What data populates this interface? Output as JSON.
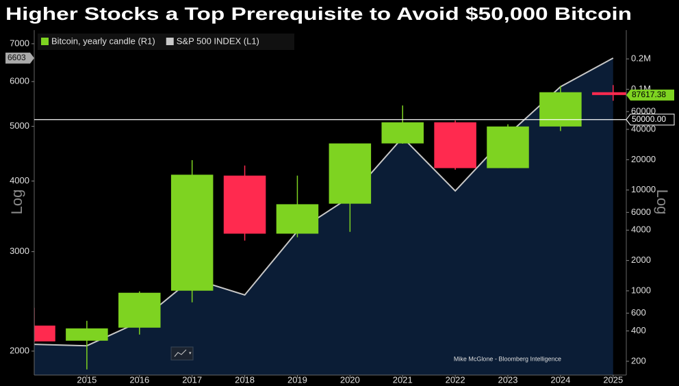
{
  "chart_data": {
    "type": "candlestick",
    "title": "Higher Stocks a Top Prerequisite to Avoid $50,000 Bitcoin",
    "source": "Mike McGlone - Bloomberg Intelligence",
    "ylabel": "Log",
    "y2label": "Log",
    "x": [
      2014,
      2015,
      2016,
      2017,
      2018,
      2019,
      2020,
      2021,
      2022,
      2023,
      2024,
      2025
    ],
    "xlim": [
      2014,
      2025.25
    ],
    "xticks": [
      2015,
      2016,
      2017,
      2018,
      2019,
      2020,
      2021,
      2022,
      2023,
      2024,
      2025
    ],
    "ylim": [
      1814,
      7400
    ],
    "yticks": [
      2000,
      3000,
      4000,
      5000,
      6000,
      7000
    ],
    "y2lim": [
      146,
      386000
    ],
    "y2ticks": [
      200,
      400,
      600,
      1000,
      2000,
      4000,
      6000,
      10000,
      20000,
      40000,
      60000,
      {
        "value": 100000,
        "label": "0.1M"
      },
      {
        "value": 200000,
        "label": "0.2M"
      }
    ],
    "log_scale": true,
    "legend": "top-left",
    "series": [
      {
        "name": "Bitcoin, yearly candle (R1)",
        "axis": "y2",
        "color": "#7ed321",
        "down_color": "#ff2a4f",
        "open": [
          452,
          320,
          431,
          1003,
          13900,
          3690,
          7320,
          29000,
          47000,
          16500,
          42700,
          93400
        ],
        "high": [
          678,
          504,
          988,
          19800,
          17500,
          13900,
          29000,
          69000,
          49000,
          44900,
          108000,
          110000
        ],
        "low": [
          310,
          166,
          368,
          769,
          3150,
          3400,
          3850,
          28800,
          15900,
          16500,
          38500,
          76900
        ],
        "close": [
          315,
          424,
          957,
          14190,
          3690,
          7230,
          29000,
          47000,
          16500,
          42700,
          93400,
          87617.38
        ]
      },
      {
        "name": "S&P 500 INDEX  (L1)",
        "color": "#c8c8c8",
        "area_color": "#0b1d36",
        "values": [
          2056,
          2044,
          2254,
          2688,
          2514,
          3260,
          3747,
          4776,
          3842,
          4832,
          5875,
          6603
        ]
      }
    ],
    "reference_line": {
      "value": 50000,
      "label": "50000.00",
      "axis": "y2"
    }
  }
}
